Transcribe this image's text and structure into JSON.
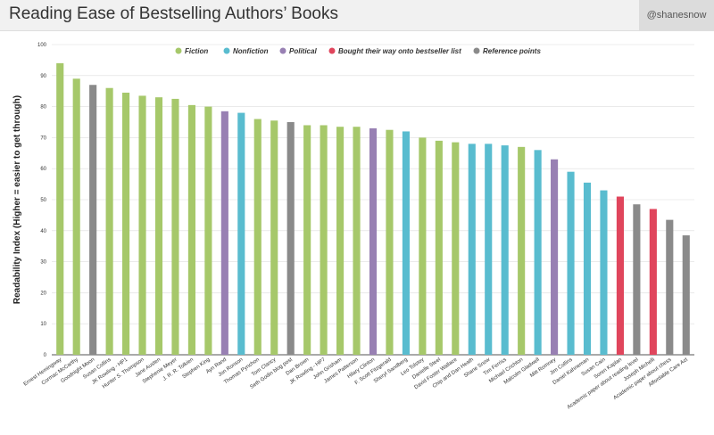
{
  "header": {
    "title": "Reading Ease of Bestselling Authors’ Books",
    "handle": "@shanesnow"
  },
  "colors": {
    "Fiction": "#a6c86a",
    "Nonfiction": "#59bccf",
    "Political": "#9880b3",
    "Bought": "#e0455c",
    "Reference": "#8a8a8a"
  },
  "chart_data": {
    "type": "bar",
    "title": "Reading Ease of Bestselling Authors’ Books",
    "xlabel": "",
    "ylabel": "Readability Index (Higher = easier to get through)",
    "ylim": [
      0,
      100
    ],
    "yticks": [
      0,
      10,
      20,
      30,
      40,
      50,
      60,
      70,
      80,
      90,
      100
    ],
    "grid": "horizontal",
    "legend_position": "top",
    "legend": [
      {
        "key": "Fiction",
        "label": "Fiction"
      },
      {
        "key": "Nonfiction",
        "label": "Nonfiction"
      },
      {
        "key": "Political",
        "label": "Political"
      },
      {
        "key": "Bought",
        "label": "Bought their way onto bestseller list"
      },
      {
        "key": "Reference",
        "label": "Reference points"
      }
    ],
    "categories": [
      "Ernest Hemingway",
      "Cormac McCarthy",
      "Goodnight Moon",
      "Susan Collins",
      "JK Rowling - HP1",
      "Hunter S. Thompson",
      "Jane Austen",
      "Stephenie Meyer",
      "J. R. R. Tolkien",
      "Stephen King",
      "Ayn Rand",
      "Jon Ronson",
      "Thomas Pynchon",
      "Tom Clancy",
      "Seth Godin blog post",
      "Dan Brown",
      "JK Rowling - HP7",
      "John Grisham",
      "James Patterson",
      "Hilary Clinton",
      "F. Scott Fitzgerald",
      "Sheryl Sandberg",
      "Leo Tolstoy",
      "Danielle Steel",
      "David Foster Wallace",
      "Chip and Dan Heath",
      "Shane Snow",
      "Tim Ferriss",
      "Michael Crichton",
      "Malcolm Gladwell",
      "Mitt Romney",
      "Jim Collins",
      "Daniel Kahneman",
      "Susan Cain",
      "Soren Kaplan",
      "Academic paper about reading level",
      "Joseph Michelli",
      "Academic paper about chess",
      "Affordable Care Act"
    ],
    "values": [
      94,
      89,
      87,
      86,
      84.5,
      83.5,
      83,
      82.5,
      80.5,
      80,
      78.5,
      78,
      76,
      75.5,
      75,
      74,
      74,
      73.5,
      73.5,
      73,
      72.5,
      72,
      70,
      69,
      68.5,
      68,
      68,
      67.5,
      67,
      66,
      63,
      59,
      55.5,
      53,
      51,
      48.5,
      47,
      43.5,
      38.5
    ],
    "groups": [
      "Fiction",
      "Fiction",
      "Reference",
      "Fiction",
      "Fiction",
      "Fiction",
      "Fiction",
      "Fiction",
      "Fiction",
      "Fiction",
      "Political",
      "Nonfiction",
      "Fiction",
      "Fiction",
      "Reference",
      "Fiction",
      "Fiction",
      "Fiction",
      "Fiction",
      "Political",
      "Fiction",
      "Nonfiction",
      "Fiction",
      "Fiction",
      "Fiction",
      "Nonfiction",
      "Nonfiction",
      "Nonfiction",
      "Fiction",
      "Nonfiction",
      "Political",
      "Nonfiction",
      "Nonfiction",
      "Nonfiction",
      "Bought",
      "Reference",
      "Bought",
      "Reference",
      "Reference"
    ]
  }
}
